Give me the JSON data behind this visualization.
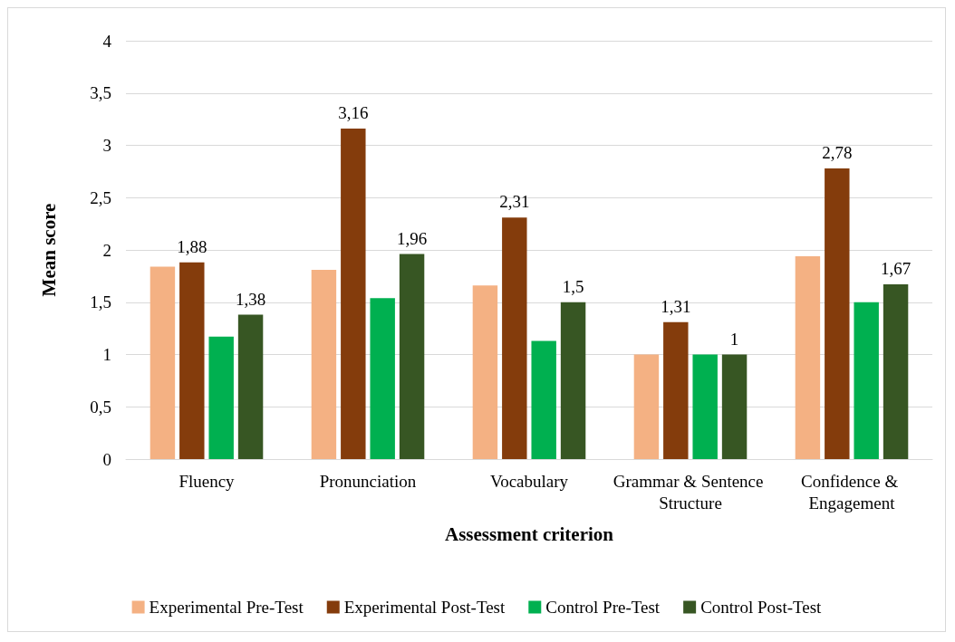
{
  "chart_data": {
    "type": "bar",
    "xlabel": "Assessment criterion",
    "ylabel": "Mean score",
    "categories": [
      "Fluency",
      "Pronunciation",
      "Vocabulary",
      "Grammar & Sentence Structure",
      "Confidence & Engagement"
    ],
    "series": [
      {
        "name": "Experimental Pre-Test",
        "color": "#f4b183",
        "values": [
          1.84,
          1.81,
          1.66,
          1.0,
          1.94
        ]
      },
      {
        "name": "Experimental Post-Test",
        "color": "#843c0c",
        "values": [
          1.88,
          3.16,
          2.31,
          1.31,
          2.78
        ],
        "value_labels": [
          "1,88",
          "3,16",
          "2,31",
          "1,31",
          "2,78"
        ]
      },
      {
        "name": "Control Pre-Test",
        "color": "#00b050",
        "values": [
          1.17,
          1.54,
          1.13,
          1.0,
          1.5
        ]
      },
      {
        "name": "Control Post-Test",
        "color": "#375623",
        "values": [
          1.38,
          1.96,
          1.5,
          1,
          1.67
        ],
        "value_labels": [
          "1,38",
          "1,96",
          "1,5",
          "1",
          "1,67"
        ]
      }
    ],
    "ylim": [
      0,
      4
    ],
    "yticks": [
      0,
      {
        "value": 0.5,
        "label": "0,5"
      },
      1,
      {
        "value": 1.5,
        "label": "1,5"
      },
      2,
      {
        "value": 2.5,
        "label": "2,5"
      },
      3,
      {
        "value": 3.5,
        "label": "3,5"
      },
      4
    ],
    "grid": "y",
    "legend": "bottom"
  }
}
